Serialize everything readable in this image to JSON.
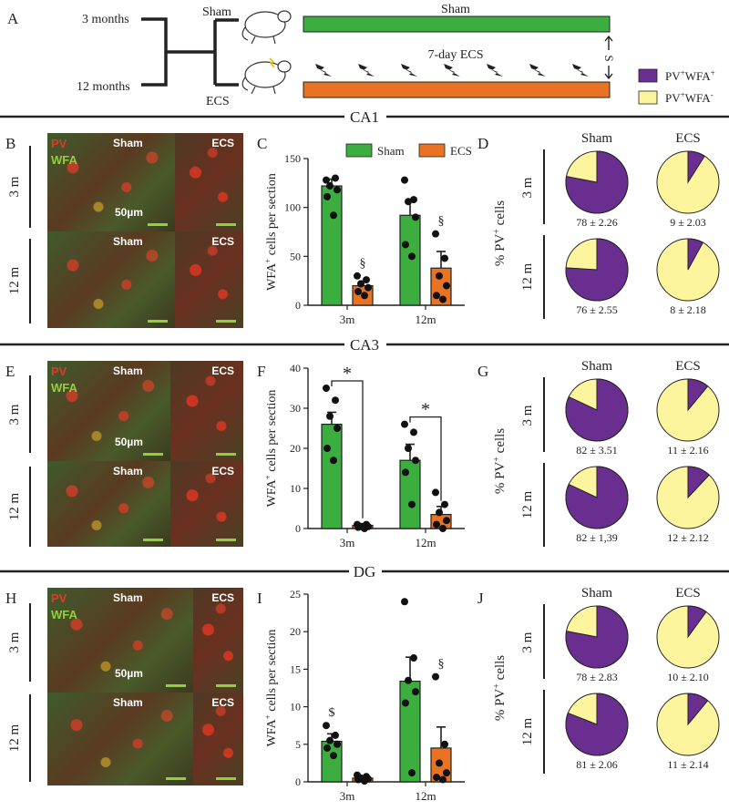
{
  "colors": {
    "sham": "#3bae3f",
    "ecs": "#e87423",
    "pv_wfa_pos": "#6a2e91",
    "pv_wfa_neg": "#fdf59d",
    "scale_bar": "#8fd13a",
    "pv_label": "#e03a2a"
  },
  "panel_a": {
    "letter": "A",
    "age_top": "3 months",
    "age_bottom": "12 months",
    "group_sham": "Sham",
    "group_ecs": "ECS",
    "bar_sham_label": "Sham",
    "bar_ecs_label": "7-day ECS",
    "sacrifice_label": "S",
    "legend": [
      {
        "label": "PV+WFA+",
        "color": "#6a2e91"
      },
      {
        "label": "PV+WFA-",
        "color": "#fdf59d"
      }
    ]
  },
  "sections": {
    "ca1": "CA1",
    "ca3": "CA3",
    "dg": "DG"
  },
  "micrographs": {
    "pv_label": "PV",
    "wfa_label": "WFA",
    "sham_label": "Sham",
    "ecs_label": "ECS",
    "scale_label": "50µm",
    "row_3m": "3 m",
    "row_12m": "12 m"
  },
  "letters": {
    "b": "B",
    "c": "C",
    "d": "D",
    "e": "E",
    "f": "F",
    "g": "G",
    "h": "H",
    "i": "I",
    "j": "J"
  },
  "pie_common": {
    "sham": "Sham",
    "ecs": "ECS",
    "ylabel": "% PV+ cells",
    "row_3m": "3 m",
    "row_12m": "12 m"
  },
  "chart_data": [
    {
      "panel": "C",
      "type": "bar",
      "region": "CA1",
      "ylabel": "WFA+ cells per section",
      "ylim": [
        0,
        150
      ],
      "yticks": [
        0,
        50,
        100,
        150
      ],
      "categories": [
        "3m",
        "12m"
      ],
      "legend": [
        "Sham",
        "ECS"
      ],
      "series": [
        {
          "name": "Sham",
          "values": [
            122,
            92
          ],
          "sem": [
            7,
            15
          ],
          "points": [
            [
              128,
              130,
              122,
              118,
              111,
              92
            ],
            [
              128,
              108,
              106,
              90,
              62,
              50
            ]
          ]
        },
        {
          "name": "ECS",
          "values": [
            20,
            38
          ],
          "sem": [
            4,
            17
          ],
          "points": [
            [
              30,
              26,
              22,
              18,
              14,
              10
            ],
            [
              73,
              48,
              30,
              20,
              10,
              6
            ]
          ]
        }
      ],
      "annotations": [
        "§",
        "§"
      ]
    },
    {
      "panel": "F",
      "type": "bar",
      "region": "CA3",
      "ylabel": "WFA+ cells per section",
      "ylim": [
        0,
        40
      ],
      "yticks": [
        0,
        10,
        20,
        30,
        40
      ],
      "categories": [
        "3m",
        "12m"
      ],
      "series": [
        {
          "name": "Sham",
          "values": [
            26,
            17
          ],
          "sem": [
            3,
            4
          ],
          "points": [
            [
              35,
              32,
              28,
              25,
              20,
              17
            ],
            [
              26,
              24,
              20,
              17,
              14,
              6
            ]
          ]
        },
        {
          "name": "ECS",
          "values": [
            0.8,
            3.5
          ],
          "sem": [
            0.4,
            2
          ],
          "points": [
            [
              1,
              1,
              0.5,
              0.5,
              0.3,
              0
            ],
            [
              9,
              6,
              4,
              2,
              1,
              0
            ]
          ]
        }
      ],
      "annotations": [
        "*",
        "*"
      ]
    },
    {
      "panel": "I",
      "type": "bar",
      "region": "DG",
      "ylabel": "WFA+ cells per section",
      "ylim": [
        0,
        25
      ],
      "yticks": [
        0,
        5,
        10,
        15,
        20,
        25
      ],
      "categories": [
        "3m",
        "12m"
      ],
      "series": [
        {
          "name": "Sham",
          "values": [
            5.4,
            13.4
          ],
          "sem": [
            1,
            3.2
          ],
          "points": [
            [
              7.5,
              6.2,
              5.5,
              5,
              4.5,
              3.5
            ],
            [
              24,
              16.5,
              13.5,
              12,
              10.5,
              1.2
            ]
          ]
        },
        {
          "name": "ECS",
          "values": [
            0.5,
            4.5
          ],
          "sem": [
            0.2,
            2.8
          ],
          "points": [
            [
              0.9,
              0.7,
              0.5,
              0.4,
              0.3,
              0.1
            ],
            [
              14,
              5,
              2.5,
              1.2,
              0.6,
              0.3
            ]
          ]
        }
      ],
      "annotations": [
        "$",
        "§"
      ]
    },
    {
      "panel": "D",
      "type": "pie",
      "region": "CA1",
      "pies": [
        {
          "group": "Sham",
          "age": "3 m",
          "pv_wfa_pos": 78,
          "label": "78 ± 2.26"
        },
        {
          "group": "ECS",
          "age": "3 m",
          "pv_wfa_pos": 9,
          "label": "9 ± 2.03"
        },
        {
          "group": "Sham",
          "age": "12 m",
          "pv_wfa_pos": 76,
          "label": "76 ± 2.55"
        },
        {
          "group": "ECS",
          "age": "12 m",
          "pv_wfa_pos": 8,
          "label": "8 ± 2.18"
        }
      ]
    },
    {
      "panel": "G",
      "type": "pie",
      "region": "CA3",
      "pies": [
        {
          "group": "Sham",
          "age": "3 m",
          "pv_wfa_pos": 82,
          "label": "82 ± 3.51"
        },
        {
          "group": "ECS",
          "age": "3 m",
          "pv_wfa_pos": 11,
          "label": "11 ± 2.16"
        },
        {
          "group": "Sham",
          "age": "12 m",
          "pv_wfa_pos": 82,
          "label": "82 ± 1,39"
        },
        {
          "group": "ECS",
          "age": "12 m",
          "pv_wfa_pos": 12,
          "label": "12 ± 2.12"
        }
      ]
    },
    {
      "panel": "J",
      "type": "pie",
      "region": "DG",
      "pies": [
        {
          "group": "Sham",
          "age": "3 m",
          "pv_wfa_pos": 78,
          "label": "78 ± 2.83"
        },
        {
          "group": "ECS",
          "age": "3 m",
          "pv_wfa_pos": 10,
          "label": "10 ± 2.10"
        },
        {
          "group": "Sham",
          "age": "12 m",
          "pv_wfa_pos": 81,
          "label": "81 ± 2.06"
        },
        {
          "group": "ECS",
          "age": "12 m",
          "pv_wfa_pos": 11,
          "label": "11 ± 2.14"
        }
      ]
    }
  ]
}
